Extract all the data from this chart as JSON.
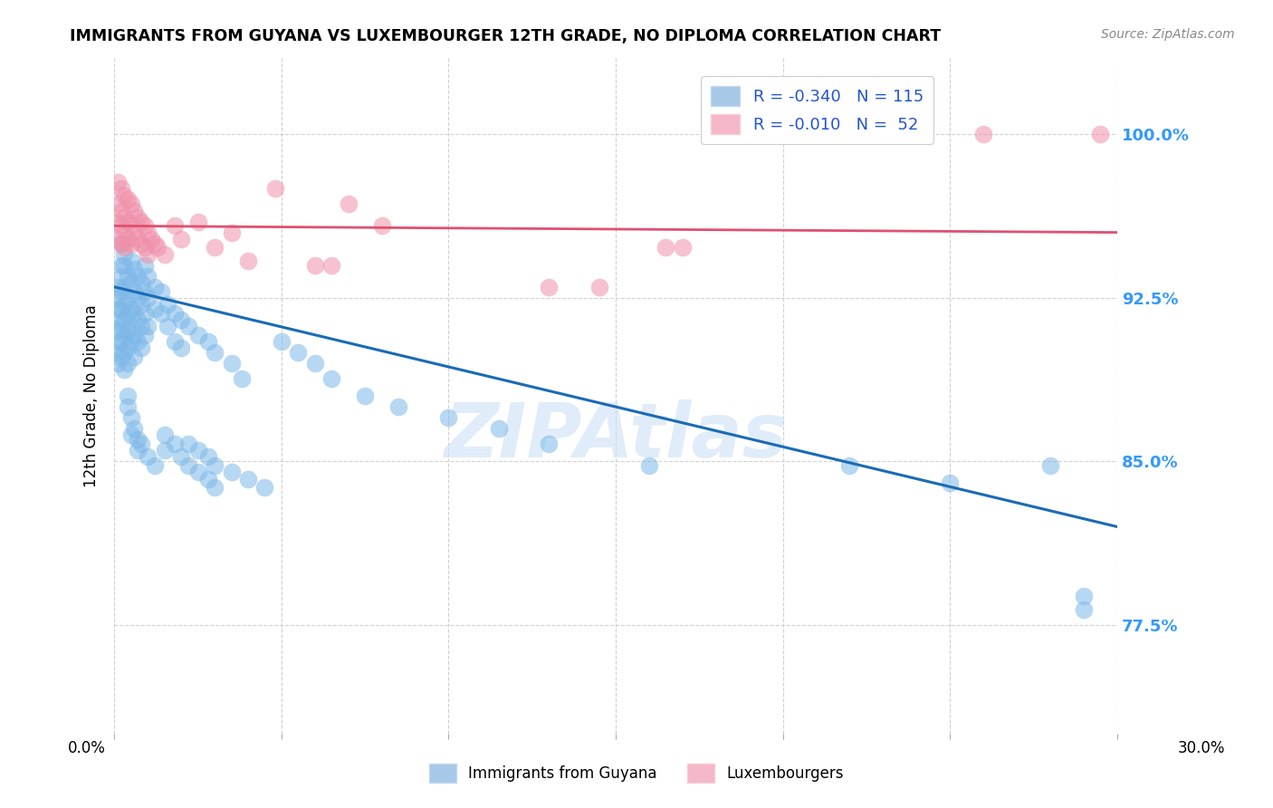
{
  "title": "IMMIGRANTS FROM GUYANA VS LUXEMBOURGER 12TH GRADE, NO DIPLOMA CORRELATION CHART",
  "source": "Source: ZipAtlas.com",
  "ylabel": "12th Grade, No Diploma",
  "ytick_labels": [
    "77.5%",
    "85.0%",
    "92.5%",
    "100.0%"
  ],
  "ytick_values": [
    0.775,
    0.85,
    0.925,
    1.0
  ],
  "xlim": [
    0.0,
    0.3
  ],
  "ylim": [
    0.725,
    1.035
  ],
  "watermark": "ZIPAtlas",
  "blue_color": "#7db8e8",
  "pink_color": "#f090aa",
  "blue_line_color": "#1a6bb5",
  "pink_line_color": "#e05070",
  "blue_scatter": [
    [
      0.001,
      0.93
    ],
    [
      0.001,
      0.92
    ],
    [
      0.001,
      0.915
    ],
    [
      0.001,
      0.91
    ],
    [
      0.001,
      0.905
    ],
    [
      0.001,
      0.9
    ],
    [
      0.001,
      0.895
    ],
    [
      0.001,
      0.925
    ],
    [
      0.002,
      0.935
    ],
    [
      0.002,
      0.928
    ],
    [
      0.002,
      0.92
    ],
    [
      0.002,
      0.912
    ],
    [
      0.002,
      0.905
    ],
    [
      0.002,
      0.898
    ],
    [
      0.002,
      0.94
    ],
    [
      0.002,
      0.95
    ],
    [
      0.003,
      0.94
    ],
    [
      0.003,
      0.93
    ],
    [
      0.003,
      0.922
    ],
    [
      0.003,
      0.915
    ],
    [
      0.003,
      0.908
    ],
    [
      0.003,
      0.9
    ],
    [
      0.003,
      0.892
    ],
    [
      0.003,
      0.945
    ],
    [
      0.004,
      0.935
    ],
    [
      0.004,
      0.925
    ],
    [
      0.004,
      0.918
    ],
    [
      0.004,
      0.91
    ],
    [
      0.004,
      0.902
    ],
    [
      0.004,
      0.895
    ],
    [
      0.004,
      0.88
    ],
    [
      0.004,
      0.875
    ],
    [
      0.005,
      0.942
    ],
    [
      0.005,
      0.932
    ],
    [
      0.005,
      0.92
    ],
    [
      0.005,
      0.912
    ],
    [
      0.005,
      0.905
    ],
    [
      0.005,
      0.87
    ],
    [
      0.005,
      0.862
    ],
    [
      0.006,
      0.938
    ],
    [
      0.006,
      0.928
    ],
    [
      0.006,
      0.918
    ],
    [
      0.006,
      0.908
    ],
    [
      0.006,
      0.898
    ],
    [
      0.006,
      0.865
    ],
    [
      0.007,
      0.935
    ],
    [
      0.007,
      0.925
    ],
    [
      0.007,
      0.915
    ],
    [
      0.007,
      0.905
    ],
    [
      0.007,
      0.86
    ],
    [
      0.007,
      0.855
    ],
    [
      0.008,
      0.932
    ],
    [
      0.008,
      0.922
    ],
    [
      0.008,
      0.912
    ],
    [
      0.008,
      0.902
    ],
    [
      0.009,
      0.94
    ],
    [
      0.009,
      0.928
    ],
    [
      0.009,
      0.918
    ],
    [
      0.009,
      0.908
    ],
    [
      0.01,
      0.935
    ],
    [
      0.01,
      0.925
    ],
    [
      0.01,
      0.912
    ],
    [
      0.012,
      0.93
    ],
    [
      0.012,
      0.92
    ],
    [
      0.014,
      0.928
    ],
    [
      0.014,
      0.918
    ],
    [
      0.016,
      0.922
    ],
    [
      0.016,
      0.912
    ],
    [
      0.018,
      0.918
    ],
    [
      0.018,
      0.905
    ],
    [
      0.02,
      0.915
    ],
    [
      0.02,
      0.902
    ],
    [
      0.022,
      0.912
    ],
    [
      0.025,
      0.908
    ],
    [
      0.028,
      0.905
    ],
    [
      0.03,
      0.9
    ],
    [
      0.035,
      0.895
    ],
    [
      0.038,
      0.888
    ],
    [
      0.008,
      0.858
    ],
    [
      0.01,
      0.852
    ],
    [
      0.012,
      0.848
    ],
    [
      0.015,
      0.862
    ],
    [
      0.015,
      0.855
    ],
    [
      0.018,
      0.858
    ],
    [
      0.02,
      0.852
    ],
    [
      0.022,
      0.858
    ],
    [
      0.022,
      0.848
    ],
    [
      0.025,
      0.855
    ],
    [
      0.025,
      0.845
    ],
    [
      0.028,
      0.852
    ],
    [
      0.028,
      0.842
    ],
    [
      0.03,
      0.848
    ],
    [
      0.03,
      0.838
    ],
    [
      0.035,
      0.845
    ],
    [
      0.04,
      0.842
    ],
    [
      0.045,
      0.838
    ],
    [
      0.05,
      0.905
    ],
    [
      0.055,
      0.9
    ],
    [
      0.06,
      0.895
    ],
    [
      0.065,
      0.888
    ],
    [
      0.075,
      0.88
    ],
    [
      0.085,
      0.875
    ],
    [
      0.1,
      0.87
    ],
    [
      0.115,
      0.865
    ],
    [
      0.13,
      0.858
    ],
    [
      0.16,
      0.848
    ],
    [
      0.22,
      0.848
    ],
    [
      0.25,
      0.84
    ],
    [
      0.28,
      0.848
    ],
    [
      0.29,
      0.788
    ],
    [
      0.29,
      0.782
    ]
  ],
  "pink_scatter": [
    [
      0.001,
      0.978
    ],
    [
      0.001,
      0.968
    ],
    [
      0.001,
      0.96
    ],
    [
      0.001,
      0.952
    ],
    [
      0.002,
      0.975
    ],
    [
      0.002,
      0.965
    ],
    [
      0.002,
      0.958
    ],
    [
      0.002,
      0.95
    ],
    [
      0.003,
      0.972
    ],
    [
      0.003,
      0.962
    ],
    [
      0.003,
      0.955
    ],
    [
      0.003,
      0.948
    ],
    [
      0.004,
      0.97
    ],
    [
      0.004,
      0.96
    ],
    [
      0.004,
      0.952
    ],
    [
      0.005,
      0.968
    ],
    [
      0.005,
      0.958
    ],
    [
      0.005,
      0.95
    ],
    [
      0.006,
      0.965
    ],
    [
      0.006,
      0.955
    ],
    [
      0.007,
      0.962
    ],
    [
      0.007,
      0.952
    ],
    [
      0.008,
      0.96
    ],
    [
      0.008,
      0.95
    ],
    [
      0.009,
      0.958
    ],
    [
      0.009,
      0.948
    ],
    [
      0.01,
      0.955
    ],
    [
      0.01,
      0.945
    ],
    [
      0.011,
      0.952
    ],
    [
      0.012,
      0.95
    ],
    [
      0.013,
      0.948
    ],
    [
      0.015,
      0.945
    ],
    [
      0.018,
      0.958
    ],
    [
      0.02,
      0.952
    ],
    [
      0.025,
      0.96
    ],
    [
      0.03,
      0.948
    ],
    [
      0.035,
      0.955
    ],
    [
      0.04,
      0.942
    ],
    [
      0.048,
      0.975
    ],
    [
      0.06,
      0.94
    ],
    [
      0.065,
      0.94
    ],
    [
      0.07,
      0.968
    ],
    [
      0.08,
      0.958
    ],
    [
      0.13,
      0.93
    ],
    [
      0.145,
      0.93
    ],
    [
      0.165,
      0.948
    ],
    [
      0.17,
      0.948
    ],
    [
      0.26,
      1.0
    ],
    [
      0.295,
      1.0
    ]
  ],
  "blue_trend_x": [
    0.0,
    0.3
  ],
  "blue_trend_y": [
    0.93,
    0.82
  ],
  "pink_trend_x": [
    0.0,
    0.3
  ],
  "pink_trend_y": [
    0.958,
    0.955
  ]
}
